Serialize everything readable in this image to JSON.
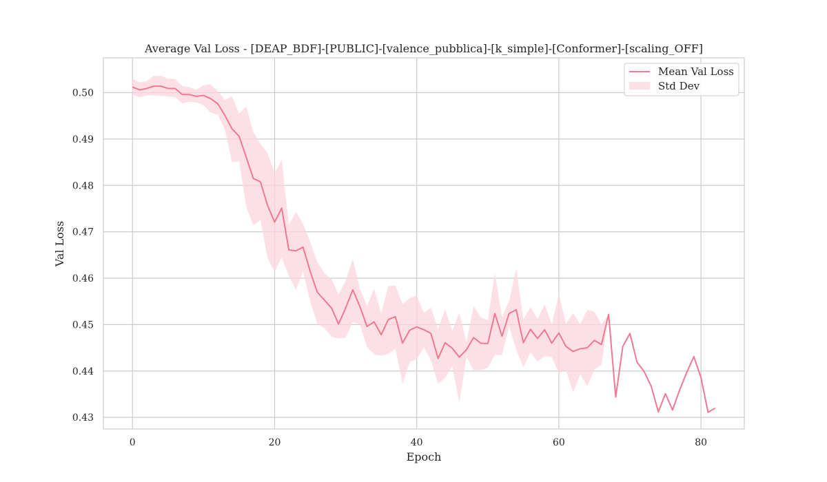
{
  "chart_data": {
    "type": "line",
    "title": "Average Val Loss - [DEAP_BDF]-[PUBLIC]-[valence_pubblica]-[k_simple]-[Conformer]-[scaling_OFF]",
    "xlabel": "Epoch",
    "ylabel": "Val Loss",
    "xlim": [
      -4.1,
      86.1
    ],
    "ylim": [
      0.4275,
      0.5075
    ],
    "xticks": [
      0,
      20,
      40,
      60,
      80
    ],
    "yticks": [
      0.43,
      0.44,
      0.45,
      0.46,
      0.47,
      0.48,
      0.49,
      0.5
    ],
    "ytick_labels": [
      "0.43",
      "0.44",
      "0.45",
      "0.46",
      "0.47",
      "0.48",
      "0.49",
      "0.50"
    ],
    "grid": true,
    "legend_position": "top-right",
    "colors": {
      "line": "#f07890",
      "band": "#fcd6de",
      "grid": "#cccccc",
      "frame": "#cccccc"
    },
    "series": [
      {
        "name": "Mean Val Loss",
        "x": [
          0,
          1,
          2,
          3,
          4,
          5,
          6,
          7,
          8,
          9,
          10,
          11,
          12,
          13,
          14,
          15,
          16,
          17,
          18,
          19,
          20,
          21,
          22,
          23,
          24,
          25,
          26,
          27,
          28,
          29,
          30,
          31,
          32,
          33,
          34,
          35,
          36,
          37,
          38,
          39,
          40,
          41,
          42,
          43,
          44,
          45,
          46,
          47,
          48,
          49,
          50,
          51,
          52,
          53,
          54,
          55,
          56,
          57,
          58,
          59,
          60,
          61,
          62,
          63,
          64,
          65,
          66,
          67,
          68,
          69,
          70,
          71,
          72,
          73,
          74,
          75,
          76,
          77,
          78,
          79,
          80,
          81,
          82
        ],
        "y": [
          0.5012,
          0.5006,
          0.5009,
          0.5014,
          0.5014,
          0.5009,
          0.5009,
          0.4996,
          0.4996,
          0.4992,
          0.4994,
          0.4987,
          0.4976,
          0.4951,
          0.4922,
          0.4906,
          0.4861,
          0.4815,
          0.4808,
          0.4757,
          0.4721,
          0.4751,
          0.4661,
          0.4659,
          0.4667,
          0.4615,
          0.457,
          0.4553,
          0.4536,
          0.4501,
          0.4536,
          0.4575,
          0.4539,
          0.4496,
          0.4506,
          0.4478,
          0.4511,
          0.4517,
          0.446,
          0.4488,
          0.4495,
          0.4489,
          0.4481,
          0.4427,
          0.4461,
          0.4449,
          0.443,
          0.4446,
          0.4472,
          0.446,
          0.4459,
          0.4524,
          0.4475,
          0.4524,
          0.4532,
          0.4461,
          0.449,
          0.447,
          0.4489,
          0.446,
          0.4482,
          0.4453,
          0.4442,
          0.4448,
          0.445,
          0.4466,
          0.4457,
          0.4522,
          0.4344,
          0.4453,
          0.4481,
          0.4419,
          0.4399,
          0.4367,
          0.4312,
          0.4351,
          0.4316,
          0.4359,
          0.4397,
          0.4431,
          0.4386,
          0.4311,
          0.432
        ]
      },
      {
        "name": "Std Dev",
        "x": [
          0,
          1,
          2,
          3,
          4,
          5,
          6,
          7,
          8,
          9,
          10,
          11,
          12,
          13,
          14,
          15,
          16,
          17,
          18,
          19,
          20,
          21,
          22,
          23,
          24,
          25,
          26,
          27,
          28,
          29,
          30,
          31,
          32,
          33,
          34,
          35,
          36,
          37,
          38,
          39,
          40,
          41,
          42,
          43,
          44,
          45,
          46,
          47,
          48,
          49,
          50,
          51,
          52,
          53,
          54,
          55,
          56,
          57,
          58,
          59,
          60,
          61,
          62,
          63,
          64,
          65,
          66,
          67
        ],
        "upper": [
          0.503,
          0.5022,
          0.5025,
          0.5036,
          0.5036,
          0.503,
          0.503,
          0.5014,
          0.5012,
          0.5006,
          0.5016,
          0.5018,
          0.5003,
          0.4984,
          0.4992,
          0.4955,
          0.497,
          0.4915,
          0.489,
          0.487,
          0.4827,
          0.4855,
          0.4715,
          0.4743,
          0.4717,
          0.4678,
          0.4635,
          0.4611,
          0.4598,
          0.4565,
          0.4595,
          0.4642,
          0.4577,
          0.454,
          0.4577,
          0.4524,
          0.4583,
          0.4584,
          0.4544,
          0.4557,
          0.4563,
          0.4525,
          0.4537,
          0.449,
          0.4533,
          0.4487,
          0.4525,
          0.4462,
          0.454,
          0.4516,
          0.4509,
          0.4612,
          0.4516,
          0.4551,
          0.4622,
          0.4511,
          0.4538,
          0.4512,
          0.4544,
          0.4501,
          0.4567,
          0.4501,
          0.4525,
          0.4501,
          0.4532,
          0.4528,
          0.4501,
          0.4522
        ],
        "lower": [
          0.4995,
          0.499,
          0.4994,
          0.4994,
          0.4993,
          0.4992,
          0.499,
          0.4977,
          0.498,
          0.4979,
          0.4973,
          0.4957,
          0.4952,
          0.492,
          0.485,
          0.4852,
          0.4754,
          0.4714,
          0.4726,
          0.4643,
          0.4614,
          0.4645,
          0.4605,
          0.4575,
          0.4615,
          0.455,
          0.4502,
          0.4492,
          0.4474,
          0.447,
          0.4472,
          0.4506,
          0.45,
          0.4452,
          0.4436,
          0.4433,
          0.4437,
          0.4448,
          0.4373,
          0.4419,
          0.4426,
          0.4451,
          0.4423,
          0.4372,
          0.4385,
          0.441,
          0.4332,
          0.443,
          0.4402,
          0.4402,
          0.4407,
          0.4435,
          0.4434,
          0.4496,
          0.4446,
          0.4408,
          0.444,
          0.442,
          0.4432,
          0.443,
          0.4395,
          0.4402,
          0.4354,
          0.4393,
          0.4367,
          0.4403,
          0.4413,
          0.4522
        ]
      }
    ]
  }
}
